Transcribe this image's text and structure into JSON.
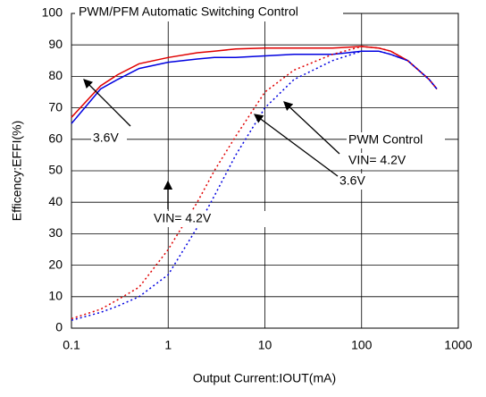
{
  "chart_data": {
    "type": "line",
    "title": "PWM/PFM  Automatic Switching Control",
    "xlabel": "Output Current:IOUT(mA)",
    "ylabel": "Efficency:EFFI(%)",
    "x": [
      0.1,
      0.2,
      0.3,
      0.5,
      1,
      2,
      3,
      5,
      10,
      20,
      50,
      100,
      150,
      200,
      300,
      500,
      600
    ],
    "series": [
      {
        "color": "#e00000",
        "style": "solid",
        "values": [
          67,
          77,
          80.5,
          84,
          86,
          87.5,
          88,
          88.7,
          89,
          89,
          89,
          89.5,
          89,
          88,
          85,
          79,
          76
        ]
      },
      {
        "color": "#0000e0",
        "style": "solid",
        "values": [
          65,
          76,
          79,
          82.5,
          84.5,
          85.5,
          86,
          86,
          86.5,
          87,
          87,
          88,
          88,
          87,
          85,
          79,
          76
        ]
      },
      {
        "color": "#e00000",
        "style": "dotted",
        "values": [
          3,
          6,
          9,
          13,
          25,
          40,
          50,
          61,
          75,
          82,
          87,
          89.5,
          89,
          88,
          85,
          79,
          76
        ]
      },
      {
        "color": "#0000e0",
        "style": "dotted",
        "values": [
          2.5,
          5,
          7,
          10,
          17,
          32,
          42,
          55,
          70,
          79,
          85,
          88,
          88,
          87,
          85,
          79,
          76
        ]
      }
    ],
    "annotations": [
      "VIN= 4.2V",
      "3.6V",
      "PWM Control",
      "VIN= 4.2V",
      "3.6V"
    ],
    "xscale": "log",
    "xlim": [
      0.1,
      1000
    ],
    "xticks": [
      0.1,
      1,
      10,
      100,
      1000
    ],
    "ylim": [
      0,
      100
    ],
    "yticks": [
      0,
      10,
      20,
      30,
      40,
      50,
      60,
      70,
      80,
      90,
      100
    ],
    "grid": true
  }
}
